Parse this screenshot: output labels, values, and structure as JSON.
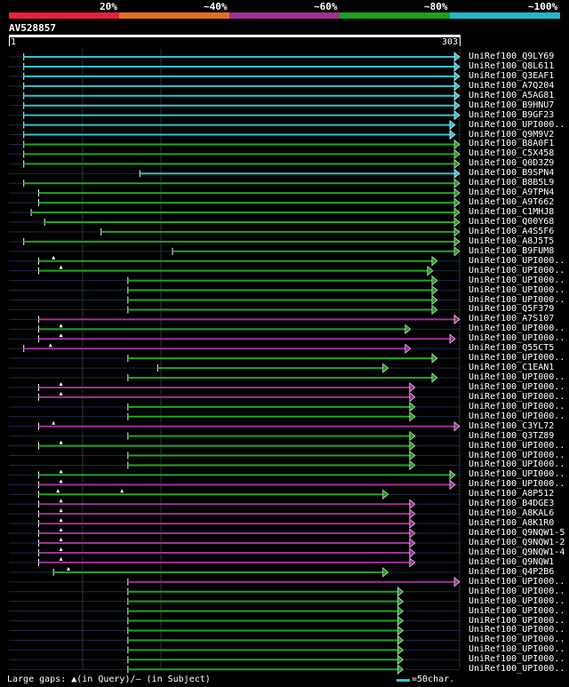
{
  "legend": {
    "labels": [
      "20%",
      "~40%",
      "~60%",
      "~80%",
      "~100%"
    ],
    "colors": [
      "#e8203c",
      "#e07020",
      "#a03090",
      "#20a020",
      "#20b8c8"
    ]
  },
  "query": {
    "name": "AV528857",
    "start": "1",
    "end": "303"
  },
  "footer": {
    "gaps": "Large gaps: ▲(in Query)/– (in Subject)",
    "scale_label": "=50char."
  },
  "hits": [
    {
      "name": "UniRef100_Q9LY69",
      "color": "cyan",
      "start": 10,
      "end": 303,
      "gaps": []
    },
    {
      "name": "UniRef100_Q8L611",
      "color": "cyan",
      "start": 10,
      "end": 303,
      "gaps": []
    },
    {
      "name": "UniRef100_Q3EAF1",
      "color": "cyan",
      "start": 10,
      "end": 303,
      "gaps": []
    },
    {
      "name": "UniRef100_A7Q204",
      "color": "cyan",
      "start": 10,
      "end": 303,
      "gaps": []
    },
    {
      "name": "UniRef100_A5AG81",
      "color": "cyan",
      "start": 10,
      "end": 303,
      "gaps": []
    },
    {
      "name": "UniRef100_B9HNU7",
      "color": "cyan",
      "start": 10,
      "end": 303,
      "gaps": []
    },
    {
      "name": "UniRef100_B9GF23",
      "color": "cyan",
      "start": 10,
      "end": 303,
      "gaps": []
    },
    {
      "name": "UniRef100_UPI000..",
      "color": "cyan",
      "start": 10,
      "end": 300,
      "gaps": []
    },
    {
      "name": "UniRef100_Q9M9V2",
      "color": "cyan",
      "start": 10,
      "end": 300,
      "gaps": []
    },
    {
      "name": "UniRef100_B8A0F1",
      "color": "green",
      "start": 10,
      "end": 303,
      "gaps": []
    },
    {
      "name": "UniRef100_C5X458",
      "color": "green",
      "start": 10,
      "end": 303,
      "gaps": []
    },
    {
      "name": "UniRef100_Q0D3Z9",
      "color": "green",
      "start": 10,
      "end": 303,
      "gaps": []
    },
    {
      "name": "UniRef100_B9SPN4",
      "color": "cyan",
      "start": 88,
      "end": 303,
      "gaps": []
    },
    {
      "name": "UniRef100_B8B5L9",
      "color": "green",
      "start": 10,
      "end": 303,
      "gaps": []
    },
    {
      "name": "UniRef100_A9TPN4",
      "color": "green",
      "start": 20,
      "end": 303,
      "gaps": []
    },
    {
      "name": "UniRef100_A9T662",
      "color": "green",
      "start": 20,
      "end": 303,
      "gaps": []
    },
    {
      "name": "UniRef100_C1MHJ8",
      "color": "green",
      "start": 15,
      "end": 303,
      "gaps": []
    },
    {
      "name": "UniRef100_Q00Y68",
      "color": "green",
      "start": 24,
      "end": 303,
      "gaps": []
    },
    {
      "name": "UniRef100_A4S5F6",
      "color": "green",
      "start": 62,
      "end": 303,
      "gaps": []
    },
    {
      "name": "UniRef100_A8J5T5",
      "color": "green",
      "start": 10,
      "end": 303,
      "gaps": []
    },
    {
      "name": "UniRef100_B9FUM8",
      "color": "green",
      "start": 110,
      "end": 303,
      "gaps": []
    },
    {
      "name": "UniRef100_UPI000..",
      "color": "green",
      "start": 20,
      "end": 288,
      "gaps": [
        30
      ]
    },
    {
      "name": "UniRef100_UPI000..",
      "color": "green",
      "start": 20,
      "end": 285,
      "gaps": [
        35
      ]
    },
    {
      "name": "UniRef100_UPI000..",
      "color": "green",
      "start": 80,
      "end": 288,
      "gaps": []
    },
    {
      "name": "UniRef100_UPI000..",
      "color": "green",
      "start": 80,
      "end": 288,
      "gaps": []
    },
    {
      "name": "UniRef100_UPI000..",
      "color": "green",
      "start": 80,
      "end": 288,
      "gaps": []
    },
    {
      "name": "UniRef100_Q5F379",
      "color": "green",
      "start": 80,
      "end": 288,
      "gaps": []
    },
    {
      "name": "UniRef100_A7S107",
      "color": "magenta",
      "start": 20,
      "end": 303,
      "gaps": []
    },
    {
      "name": "UniRef100_UPI000..",
      "color": "green",
      "start": 20,
      "end": 270,
      "gaps": [
        35
      ]
    },
    {
      "name": "UniRef100_UPI000..",
      "color": "magenta",
      "start": 20,
      "end": 300,
      "gaps": [
        35
      ]
    },
    {
      "name": "UniRef100_Q55CT5",
      "color": "magenta",
      "start": 10,
      "end": 270,
      "gaps": [
        28
      ]
    },
    {
      "name": "UniRef100_UPI000..",
      "color": "green",
      "start": 80,
      "end": 288,
      "gaps": []
    },
    {
      "name": "UniRef100_C1EAN1",
      "color": "green",
      "start": 100,
      "end": 255,
      "gaps": []
    },
    {
      "name": "UniRef100_UPI000..",
      "color": "green",
      "start": 80,
      "end": 288,
      "gaps": []
    },
    {
      "name": "UniRef100_UPI000..",
      "color": "magenta",
      "start": 20,
      "end": 273,
      "gaps": [
        35
      ]
    },
    {
      "name": "UniRef100_UPI000..",
      "color": "magenta",
      "start": 20,
      "end": 273,
      "gaps": [
        35
      ]
    },
    {
      "name": "UniRef100_UPI000..",
      "color": "green",
      "start": 80,
      "end": 273,
      "gaps": []
    },
    {
      "name": "UniRef100_UPI000..",
      "color": "green",
      "start": 80,
      "end": 273,
      "gaps": []
    },
    {
      "name": "UniRef100_C3YL72",
      "color": "magenta",
      "start": 20,
      "end": 303,
      "gaps": [
        30
      ]
    },
    {
      "name": "UniRef100_Q3TZ89",
      "color": "green",
      "start": 80,
      "end": 273,
      "gaps": []
    },
    {
      "name": "UniRef100_UPI000..",
      "color": "green",
      "start": 20,
      "end": 273,
      "gaps": [
        35
      ]
    },
    {
      "name": "UniRef100_UPI000..",
      "color": "green",
      "start": 80,
      "end": 273,
      "gaps": []
    },
    {
      "name": "UniRef100_UPI000..",
      "color": "green",
      "start": 80,
      "end": 273,
      "gaps": []
    },
    {
      "name": "UniRef100_UPI000..",
      "color": "green",
      "start": 20,
      "end": 300,
      "gaps": [
        35
      ]
    },
    {
      "name": "UniRef100_UPI000..",
      "color": "magenta",
      "start": 20,
      "end": 300,
      "gaps": [
        35
      ]
    },
    {
      "name": "UniRef100_A8P512",
      "color": "green",
      "start": 20,
      "end": 255,
      "gaps": [
        33,
        76
      ]
    },
    {
      "name": "UniRef100_B4DGE3",
      "color": "magenta",
      "start": 20,
      "end": 273,
      "gaps": [
        35
      ]
    },
    {
      "name": "UniRef100_A8KAL6",
      "color": "magenta",
      "start": 20,
      "end": 273,
      "gaps": [
        35
      ]
    },
    {
      "name": "UniRef100_A8K1R0",
      "color": "magenta",
      "start": 20,
      "end": 273,
      "gaps": [
        35
      ]
    },
    {
      "name": "UniRef100_Q9NQW1-5",
      "color": "magenta",
      "start": 20,
      "end": 273,
      "gaps": [
        35
      ]
    },
    {
      "name": "UniRef100_Q9NQW1-2",
      "color": "magenta",
      "start": 20,
      "end": 273,
      "gaps": [
        35
      ]
    },
    {
      "name": "UniRef100_Q9NQW1-4",
      "color": "magenta",
      "start": 20,
      "end": 273,
      "gaps": [
        35
      ]
    },
    {
      "name": "UniRef100_Q9NQW1",
      "color": "magenta",
      "start": 20,
      "end": 273,
      "gaps": [
        35
      ]
    },
    {
      "name": "UniRef100_Q4P2B6",
      "color": "green",
      "start": 30,
      "end": 255,
      "gaps": [
        40
      ]
    },
    {
      "name": "UniRef100_UPI000..",
      "color": "magenta",
      "start": 80,
      "end": 303,
      "gaps": []
    },
    {
      "name": "UniRef100_UPI000..",
      "color": "green",
      "start": 80,
      "end": 265,
      "gaps": []
    },
    {
      "name": "UniRef100_UPI000..",
      "color": "green",
      "start": 80,
      "end": 265,
      "gaps": []
    },
    {
      "name": "UniRef100_UPI000..",
      "color": "green",
      "start": 80,
      "end": 265,
      "gaps": []
    },
    {
      "name": "UniRef100_UPI000..",
      "color": "green",
      "start": 80,
      "end": 265,
      "gaps": []
    },
    {
      "name": "UniRef100_UPI000..",
      "color": "green",
      "start": 80,
      "end": 265,
      "gaps": []
    },
    {
      "name": "UniRef100_UPI000..",
      "color": "green",
      "start": 80,
      "end": 265,
      "gaps": []
    },
    {
      "name": "UniRef100_UPI000..",
      "color": "green",
      "start": 80,
      "end": 265,
      "gaps": []
    },
    {
      "name": "UniRef100_UPI000..",
      "color": "green",
      "start": 80,
      "end": 265,
      "gaps": []
    },
    {
      "name": "UniRef100_UPI000..",
      "color": "green",
      "start": 80,
      "end": 265,
      "gaps": []
    }
  ]
}
